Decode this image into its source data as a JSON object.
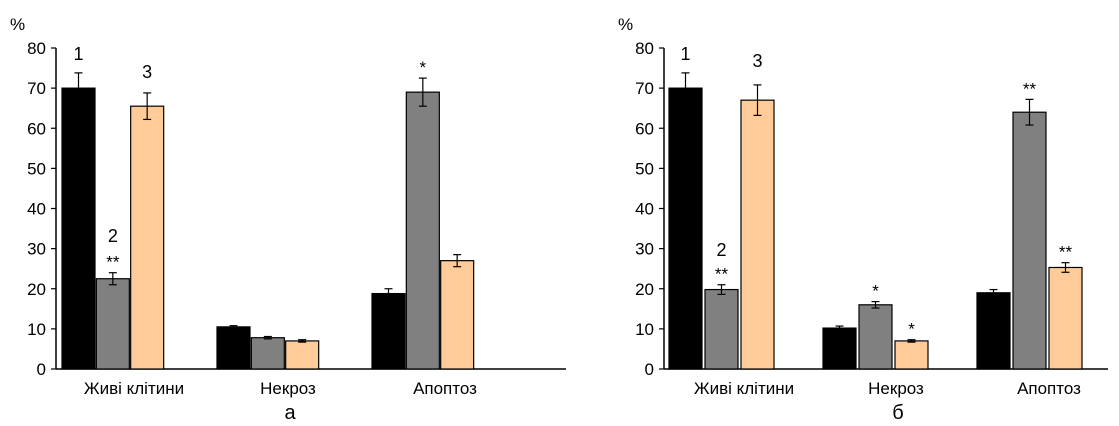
{
  "chart_data": [
    {
      "type": "bar",
      "panel_label": "а",
      "y_unit": "%",
      "ylim": [
        0,
        80
      ],
      "yticks": [
        "0",
        "10",
        "20",
        "30",
        "40",
        "50",
        "60",
        "70",
        "80"
      ],
      "categories": [
        "Живі  клітини",
        "Некроз",
        "Апоптоз"
      ],
      "series": [
        {
          "values": [
            70,
            10.5,
            18.8
          ],
          "errors": [
            3.8,
            0.3,
            1.2
          ],
          "sig": [
            "",
            "",
            ""
          ],
          "color": "#000000"
        },
        {
          "values": [
            22.5,
            7.8,
            69
          ],
          "errors": [
            1.5,
            0.3,
            3.5
          ],
          "sig": [
            "**",
            "",
            "*"
          ],
          "color": "#808080"
        },
        {
          "values": [
            65.5,
            7.0,
            27
          ],
          "errors": [
            3.3,
            0.3,
            1.5
          ],
          "sig": [
            "",
            "",
            ""
          ],
          "color": "#FFCC99"
        }
      ],
      "bar_numbers": [
        "1",
        "2",
        "3"
      ],
      "grid": false
    },
    {
      "type": "bar",
      "panel_label": "б",
      "y_unit": "%",
      "ylim": [
        0,
        80
      ],
      "yticks": [
        "0",
        "10",
        "20",
        "30",
        "40",
        "50",
        "60",
        "70",
        "80"
      ],
      "categories": [
        "Живі  клітини",
        "Некроз",
        "Апоптоз"
      ],
      "series": [
        {
          "values": [
            70,
            10.2,
            19
          ],
          "errors": [
            3.8,
            0.5,
            0.8
          ],
          "sig": [
            "",
            "",
            ""
          ],
          "color": "#000000"
        },
        {
          "values": [
            19.8,
            16,
            64
          ],
          "errors": [
            1.2,
            0.8,
            3.2
          ],
          "sig": [
            "**",
            "*",
            "**"
          ],
          "color": "#808080"
        },
        {
          "values": [
            67,
            7,
            25.3
          ],
          "errors": [
            3.8,
            0.3,
            1.2
          ],
          "sig": [
            "",
            "*",
            "**"
          ],
          "color": "#FFCC99"
        }
      ],
      "bar_numbers": [
        "1",
        "2",
        "3"
      ],
      "grid": false
    }
  ]
}
